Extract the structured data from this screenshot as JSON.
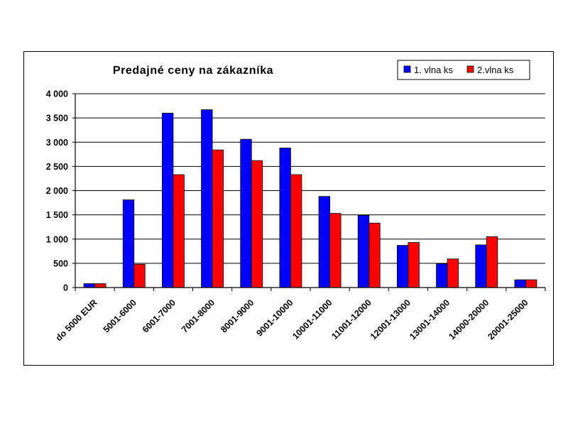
{
  "chart_data": {
    "type": "bar",
    "title": "Predajné ceny na zákazníka",
    "xlabel": "",
    "ylabel": "",
    "categories": [
      "do 5000 EUR",
      "5001-6000",
      "6001-7000",
      "7001-8000",
      "8001-9000",
      "9001-10000",
      "10001-11000",
      "11001-12000",
      "12001-13000",
      "13001-14000",
      "14000-20000",
      "20001-25000"
    ],
    "series": [
      {
        "name": "1. vlna ks",
        "color": "#0000ff",
        "values": [
          80,
          1810,
          3600,
          3670,
          3060,
          2880,
          1880,
          1490,
          870,
          490,
          880,
          160
        ]
      },
      {
        "name": "2.vlna ks",
        "color": "#ff0000",
        "values": [
          80,
          480,
          2330,
          2840,
          2620,
          2330,
          1530,
          1330,
          930,
          590,
          1050,
          160
        ]
      }
    ],
    "ylim": [
      0,
      4000
    ],
    "yticks": [
      0,
      500,
      1000,
      1500,
      2000,
      2500,
      3000,
      3500,
      4000
    ],
    "ytick_labels": [
      "0",
      "500",
      "1 000",
      "1 500",
      "2 000",
      "2 500",
      "3 000",
      "3 500",
      "4 000"
    ],
    "grid": true,
    "legend_position": "top-right"
  }
}
